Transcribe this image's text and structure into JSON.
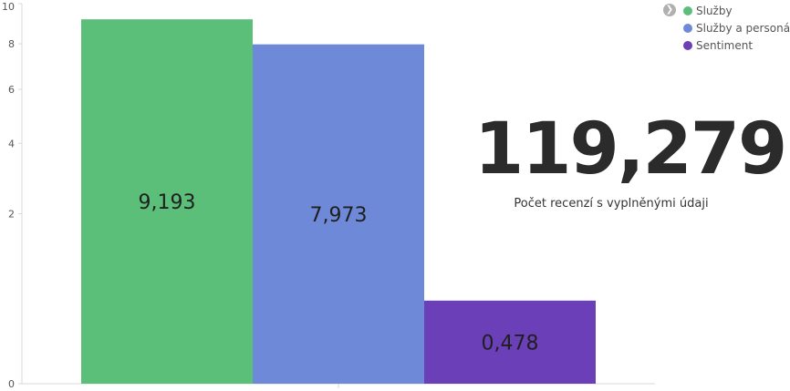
{
  "chart_data": {
    "type": "bar",
    "categories": [
      "Služby",
      "Služby a personál",
      "Sentiment"
    ],
    "values": [
      9.193,
      7.973,
      0.478
    ],
    "value_labels": [
      "9,193",
      "7,973",
      "0,478"
    ],
    "y_ticks": [
      0,
      2,
      4,
      6,
      8,
      10
    ],
    "ylim": [
      0,
      10
    ],
    "y_scale": "sqrt",
    "title": "",
    "xlabel": "",
    "ylabel": "",
    "grid": false,
    "legend_position": "top-right",
    "colors": [
      "#5bbf7a",
      "#6f89d9",
      "#6a3fb8"
    ]
  },
  "legend": {
    "items": [
      {
        "label": "Služby",
        "color": "#5bbf7a"
      },
      {
        "label": "Služby a personál",
        "color": "#6f89d9"
      },
      {
        "label": "Sentiment",
        "color": "#6a3fb8"
      }
    ]
  },
  "kpi": {
    "value": "119,279",
    "label": "Počet recenzí s vyplněnými údaji"
  },
  "colors": {
    "axis": "#d8d8d8",
    "label_text": "#555555",
    "kpi_text": "#2b2b2b"
  }
}
